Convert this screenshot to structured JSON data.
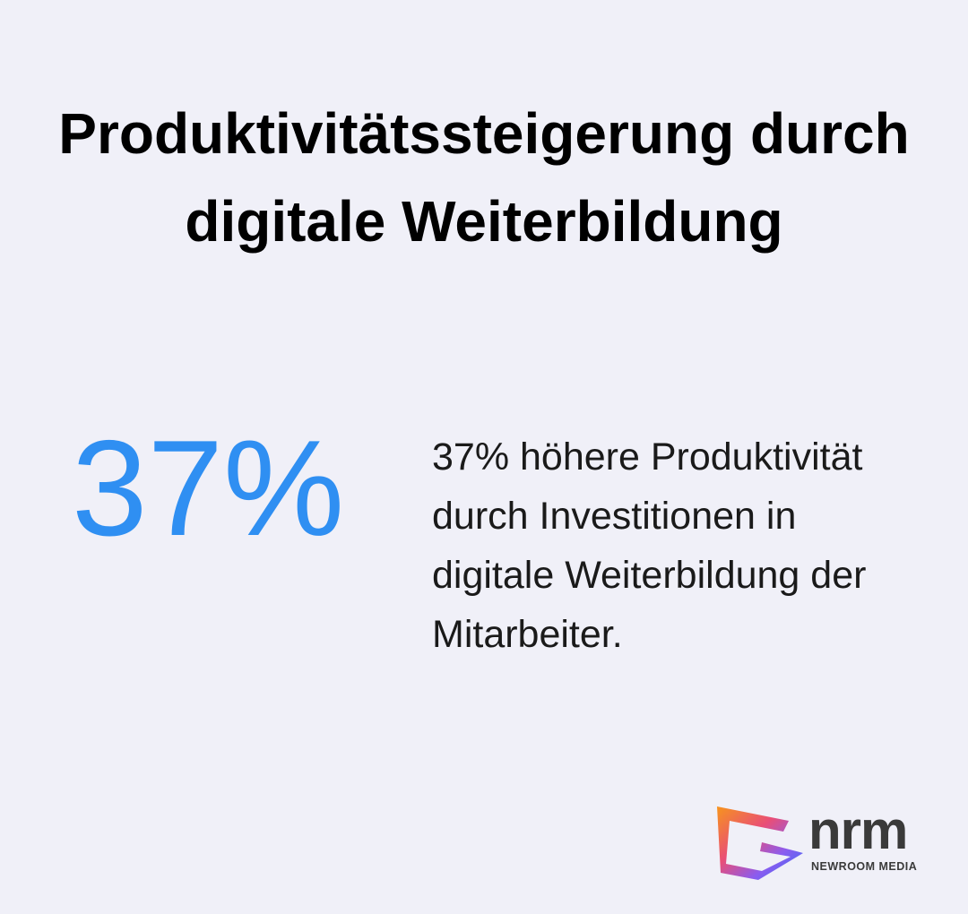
{
  "header": {
    "title": "Produktivitätssteigerung durch digitale Weiterbildung"
  },
  "stat": {
    "value": "37%",
    "description": "37% höhere Produktivität durch Investitionen in digitale Weiterbildung der Mitarbeiter."
  },
  "logo": {
    "name": "nrm",
    "tagline": "NEWROOM MEDIA"
  }
}
